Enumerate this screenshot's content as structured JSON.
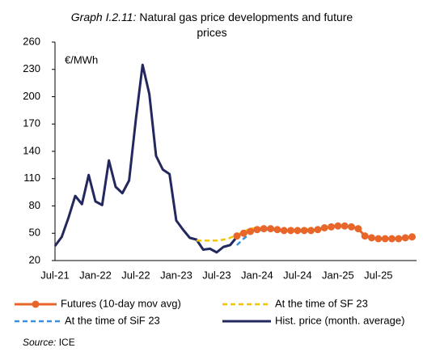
{
  "chart_data": {
    "type": "line",
    "title_label": "Graph I.2.11:",
    "title": "Natural gas price developments and future prices",
    "y_label": "€/MWh",
    "source_label": "Source:",
    "source": "ICE",
    "categories": [
      "Jul-21",
      null,
      null,
      null,
      null,
      null,
      "Jan-22",
      null,
      null,
      null,
      null,
      null,
      "Jul-22",
      null,
      null,
      null,
      null,
      null,
      "Jan-23",
      null,
      null,
      null,
      null,
      null,
      "Jul-23",
      null,
      null,
      null,
      null,
      null,
      "Jan-24",
      null,
      null,
      null,
      null,
      null,
      "Jul-24",
      null,
      null,
      null,
      null,
      null,
      "Jan-25",
      null,
      null,
      null,
      null,
      null,
      "Jul-25",
      null,
      null,
      null,
      null,
      null
    ],
    "ylim": [
      20,
      260
    ],
    "yticks": [
      20,
      50,
      80,
      110,
      140,
      170,
      200,
      230,
      260
    ],
    "series": [
      {
        "name": "Futures (10-day mov avg)",
        "color": "#e8662a",
        "dash": false,
        "marker": "circle",
        "values": [
          null,
          null,
          null,
          null,
          null,
          null,
          null,
          null,
          null,
          null,
          null,
          null,
          null,
          null,
          null,
          null,
          null,
          null,
          null,
          null,
          null,
          null,
          null,
          null,
          null,
          null,
          null,
          47,
          50,
          52,
          54,
          55,
          55,
          54,
          53,
          53,
          53,
          53,
          53,
          54,
          56,
          57,
          58,
          58,
          57,
          55,
          47,
          45,
          44,
          44,
          44,
          44,
          45,
          46
        ]
      },
      {
        "name": "At the time of SF 23",
        "color": "#f5c400",
        "dash": true,
        "values": [
          null,
          null,
          null,
          null,
          null,
          null,
          null,
          null,
          null,
          null,
          null,
          null,
          null,
          null,
          null,
          null,
          null,
          null,
          null,
          null,
          null,
          42,
          42,
          42,
          42,
          43,
          45,
          48,
          52,
          55,
          56,
          56,
          55,
          54,
          53,
          53,
          53,
          54,
          55,
          56,
          57,
          null,
          null,
          null,
          null,
          null,
          null,
          null,
          null,
          null,
          null,
          null,
          null,
          null
        ]
      },
      {
        "name": "At the time of SiF 23",
        "color": "#3b8fdc",
        "dash": true,
        "values": [
          null,
          null,
          null,
          null,
          null,
          null,
          null,
          null,
          null,
          null,
          null,
          null,
          null,
          null,
          null,
          null,
          null,
          null,
          null,
          null,
          null,
          null,
          null,
          null,
          null,
          null,
          null,
          37,
          44,
          50,
          53,
          54,
          54,
          53,
          52,
          52,
          52,
          52,
          53,
          54,
          55,
          null,
          null,
          null,
          null,
          null,
          null,
          null,
          null,
          null,
          null,
          null,
          null,
          null
        ]
      },
      {
        "name": "Hist. price (month. average)",
        "color": "#23285e",
        "dash": false,
        "values": [
          36,
          46,
          67,
          91,
          82,
          114,
          85,
          81,
          130,
          101,
          94,
          108,
          175,
          235,
          203,
          135,
          120,
          115,
          64,
          54,
          45,
          43,
          32,
          33,
          29,
          35,
          37,
          46,
          null,
          null,
          null,
          null,
          null,
          null,
          null,
          null,
          null,
          null,
          null,
          null,
          null,
          null,
          null,
          null,
          null,
          null,
          null,
          null,
          null,
          null,
          null,
          null,
          null,
          null
        ]
      }
    ]
  }
}
